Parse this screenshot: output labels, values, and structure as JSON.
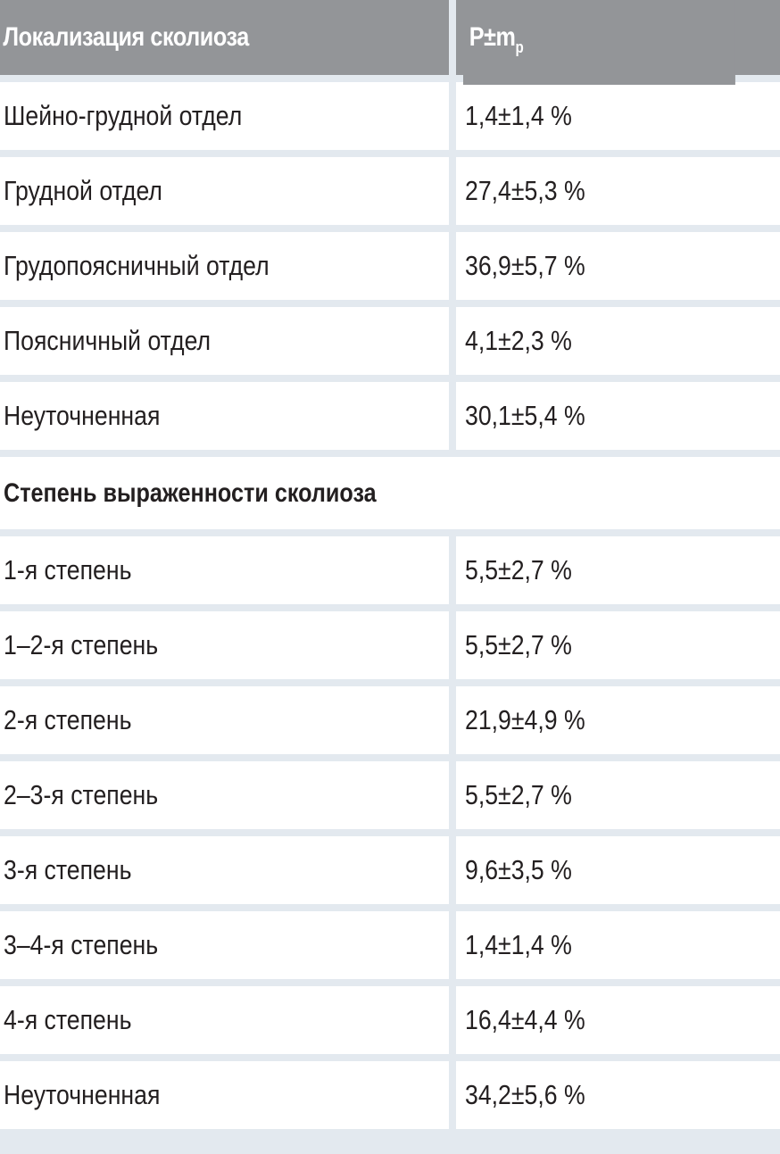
{
  "header": {
    "col1": "Локализация сколиоза",
    "col2_main": "P±m",
    "col2_sub": "p"
  },
  "localization_rows": [
    {
      "label": "Шейно-грудной отдел",
      "value": "1,4±1,4 %"
    },
    {
      "label": "Грудной отдел",
      "value": "27,4±5,3 %"
    },
    {
      "label": "Грудопоясничный отдел",
      "value": "36,9±5,7 %"
    },
    {
      "label": "Поясничный отдел",
      "value": "4,1±2,3 %"
    },
    {
      "label": "Неуточненная",
      "value": "30,1±5,4 %"
    }
  ],
  "section2_title": "Степень выраженности сколиоза",
  "degree_rows": [
    {
      "label": "1-я степень",
      "value": "5,5±2,7 %"
    },
    {
      "label": "1–2-я степень",
      "value": "5,5±2,7 %"
    },
    {
      "label": "2-я степень",
      "value": "21,9±4,9 %"
    },
    {
      "label": "2–3-я степень",
      "value": "5,5±2,7 %"
    },
    {
      "label": "3-я степень",
      "value": "9,6±3,5 %"
    },
    {
      "label": "3–4-я степень",
      "value": "1,4±1,4 %"
    },
    {
      "label": "4-я степень",
      "value": "16,4±4,4 %"
    },
    {
      "label": "Неуточненная",
      "value": "34,2±5,6 %"
    }
  ]
}
